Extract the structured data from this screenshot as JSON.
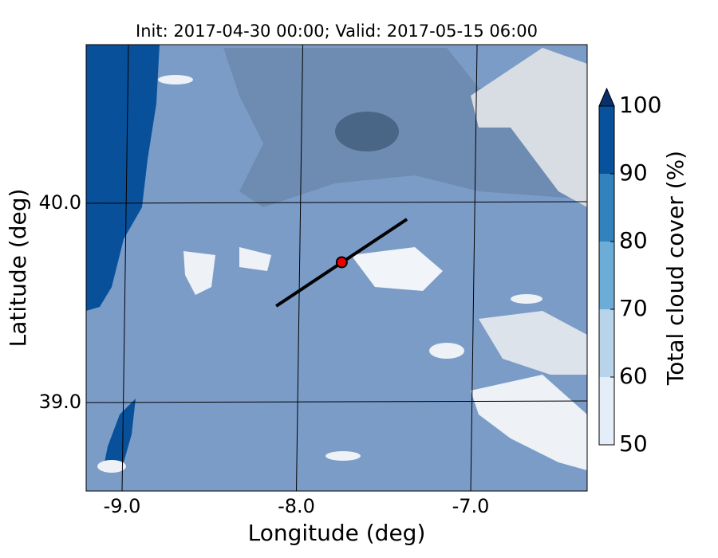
{
  "chart_data": {
    "type": "map",
    "title": "Init: 2017-04-30 00:00; Valid: 2017-05-15 06:00",
    "xlabel": "Longitude (deg)",
    "ylabel": "Latitude (deg)",
    "xlim": [
      -9.206,
      -6.332
    ],
    "ylim": [
      38.556,
      40.796
    ],
    "xticks": [
      {
        "value": -9,
        "label": "-9.0"
      },
      {
        "value": -8,
        "label": "-8.0"
      },
      {
        "value": -7,
        "label": "-7.0"
      }
    ],
    "yticks": [
      {
        "value": 39,
        "label": "39.0"
      },
      {
        "value": 40,
        "label": "40.0"
      }
    ],
    "grid": true,
    "lines": [
      {
        "x": [
          -8.116,
          -7.366
        ],
        "y": [
          39.484,
          39.92
        ],
        "color": "#000000"
      }
    ],
    "points": [
      {
        "x": -7.74,
        "y": 39.704,
        "color": "#ee0000"
      }
    ],
    "colorbar": {
      "label": "Total cloud cover (%)",
      "ticks": [
        50,
        60,
        70,
        80,
        90,
        100
      ],
      "colors": [
        "#e4eef8",
        "#b8d4ea",
        "#6badd6",
        "#3182bd",
        "#08519c"
      ],
      "extend_color": "#08306b"
    }
  }
}
